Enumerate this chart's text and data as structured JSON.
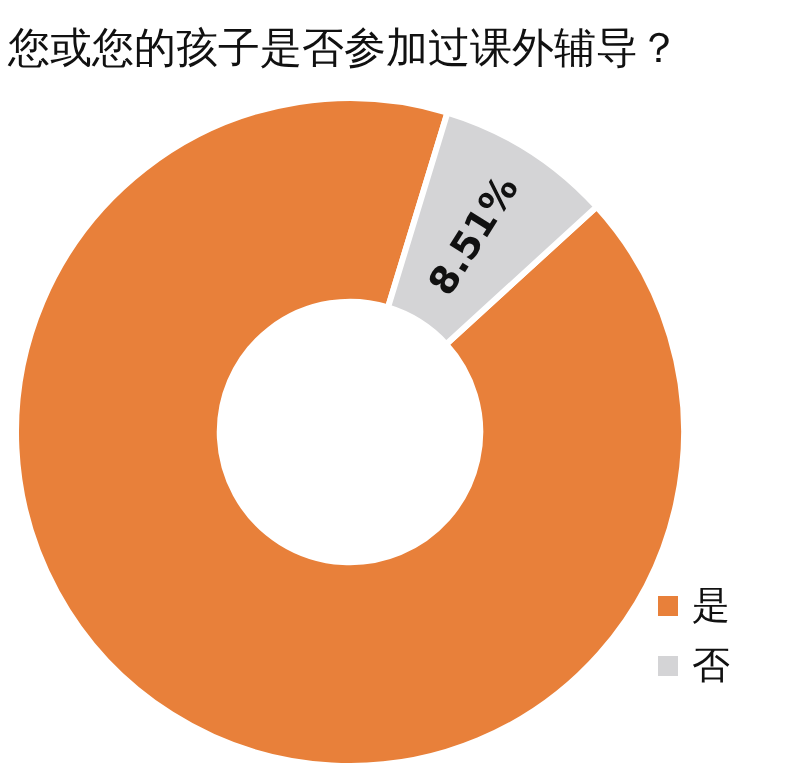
{
  "chart_data": {
    "type": "donut",
    "title": "您或您的孩子是否参加过课外辅导？",
    "categories": [
      "是",
      "否"
    ],
    "values": [
      91.49,
      8.51
    ],
    "colors": [
      "#e8803a",
      "#d4d4d6"
    ],
    "value_labels": [
      null,
      "8.51%"
    ],
    "legend": "bottom right"
  }
}
